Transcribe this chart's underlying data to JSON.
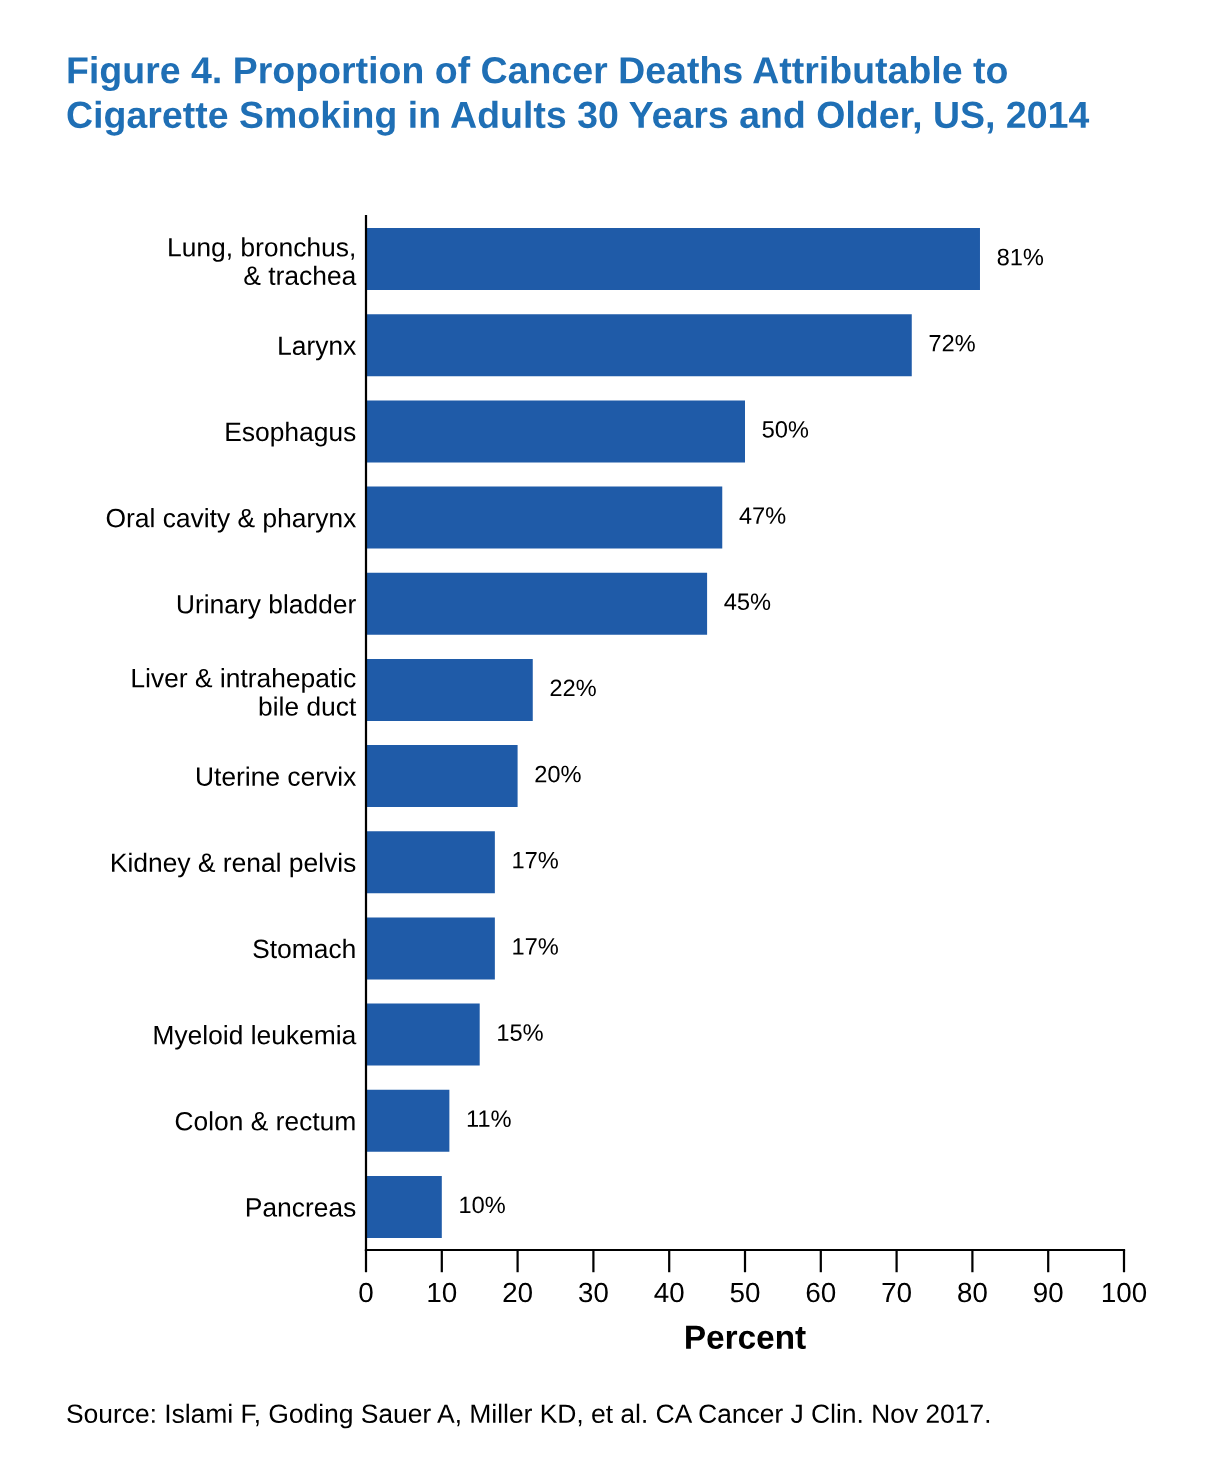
{
  "chart_data": {
    "type": "bar",
    "orientation": "horizontal",
    "title": "Figure 4. Proportion of Cancer Deaths Attributable to\nCigarette Smoking in Adults 30 Years and Older, US, 2014",
    "xlabel": "Percent",
    "categories": [
      "Lung, bronchus,\n& trachea",
      "Larynx",
      "Esophagus",
      "Oral cavity & pharynx",
      "Urinary bladder",
      "Liver & intrahepatic\nbile duct",
      "Uterine cervix",
      "Kidney & renal pelvis",
      "Stomach",
      "Myeloid leukemia",
      "Colon & rectum",
      "Pancreas"
    ],
    "values": [
      81,
      72,
      50,
      47,
      45,
      22,
      20,
      17,
      17,
      15,
      11,
      10
    ],
    "value_labels": [
      "81%",
      "72%",
      "50%",
      "47%",
      "45%",
      "22%",
      "20%",
      "17%",
      "17%",
      "15%",
      "11%",
      "10%"
    ],
    "color": "#1f5ba8",
    "xlim": [
      0,
      100
    ],
    "xticks": [
      0,
      10,
      20,
      30,
      40,
      50,
      60,
      70,
      80,
      90,
      100
    ],
    "grid": false,
    "legend": false,
    "annotations": [
      "Source: Islami F, Goding Sauer A, Miller KD, et al. CA Cancer J Clin. Nov 2017."
    ]
  }
}
